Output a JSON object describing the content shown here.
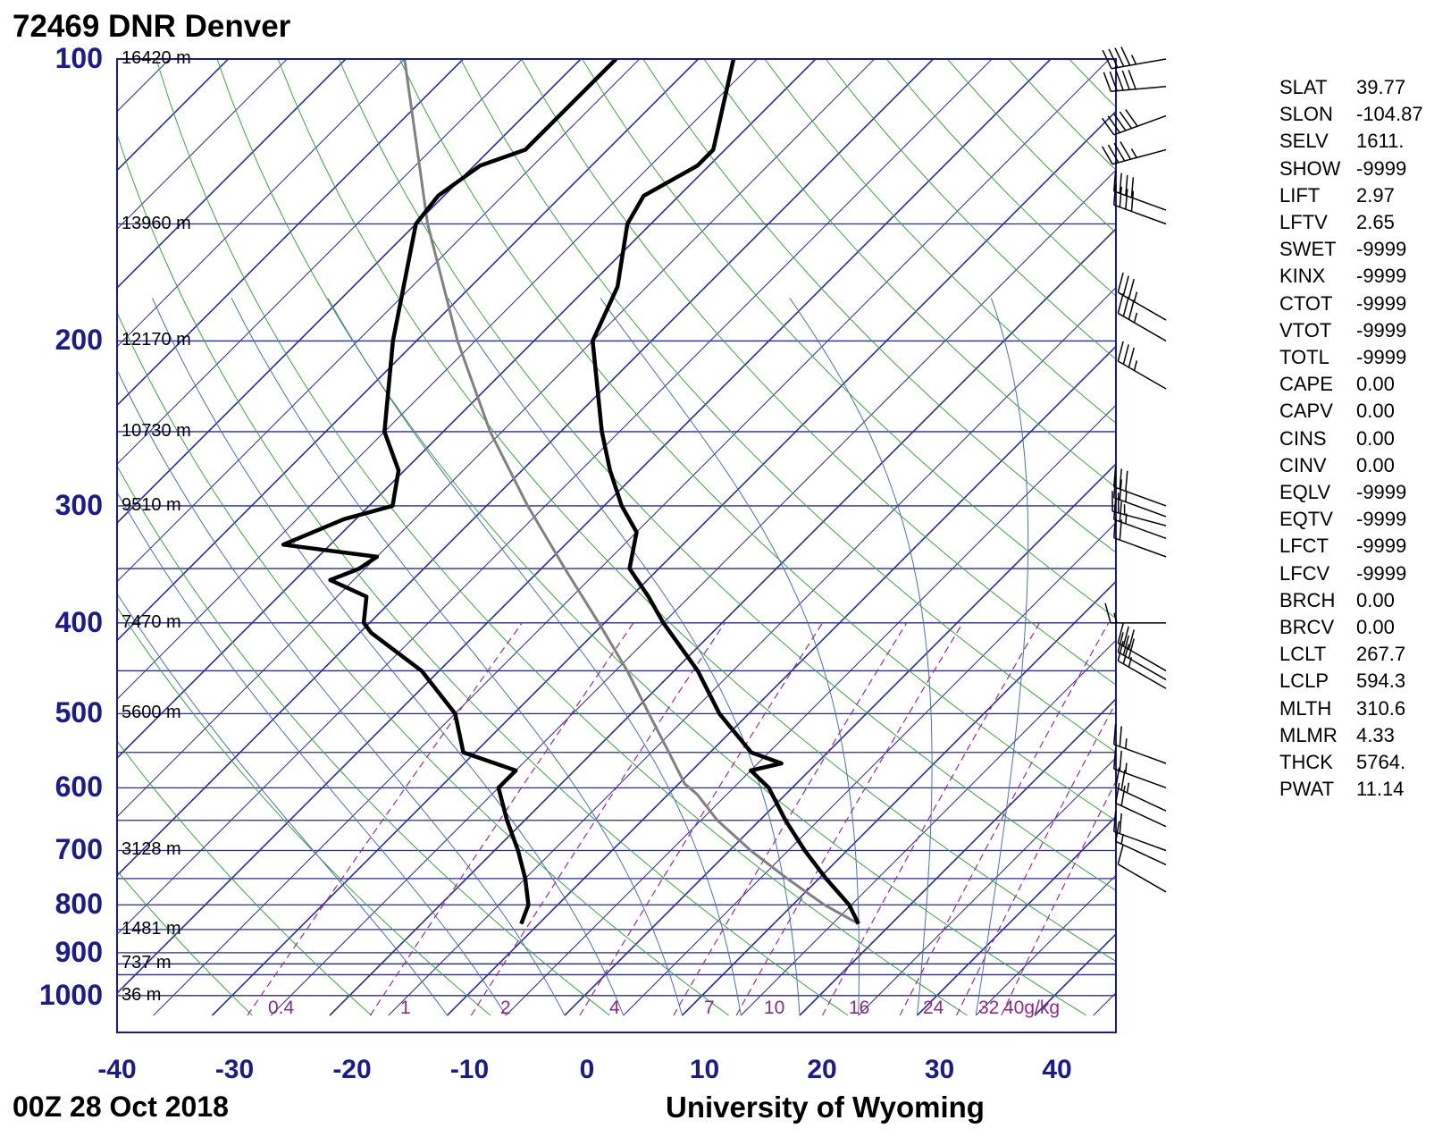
{
  "header": {
    "station": "72469 DNR Denver"
  },
  "footer": {
    "date": "00Z 28 Oct 2018",
    "source": "University of Wyoming"
  },
  "axes": {
    "pressure_labels": [
      "100",
      "200",
      "300",
      "400",
      "500",
      "600",
      "700",
      "800",
      "900",
      "1000"
    ],
    "temperature_labels": [
      "-40",
      "-30",
      "-20",
      "-10",
      "0",
      "10",
      "20",
      "30",
      "40"
    ]
  },
  "heights": [
    {
      "p": 100,
      "label": "16420 m"
    },
    {
      "p": 150,
      "label": "13960 m"
    },
    {
      "p": 200,
      "label": "12170 m"
    },
    {
      "p": 250,
      "label": "10730 m"
    },
    {
      "p": 300,
      "label": "9510 m"
    },
    {
      "p": 400,
      "label": "7470 m"
    },
    {
      "p": 500,
      "label": "5600 m"
    },
    {
      "p": 700,
      "label": "3128 m"
    },
    {
      "p": 850,
      "label": "1481 m"
    },
    {
      "p": 925,
      "label": "737 m"
    },
    {
      "p": 1000,
      "label": "36 m"
    }
  ],
  "mixing_ratio_labels": [
    "0.4",
    "1",
    "2",
    "4",
    "7",
    "10",
    "16",
    "24",
    "32",
    "40g/kg"
  ],
  "stats": [
    {
      "key": "SLAT",
      "value": "39.77"
    },
    {
      "key": "SLON",
      "value": "-104.87"
    },
    {
      "key": "SELV",
      "value": "1611."
    },
    {
      "key": "SHOW",
      "value": "-9999"
    },
    {
      "key": "LIFT",
      "value": "2.97"
    },
    {
      "key": "LFTV",
      "value": "2.65"
    },
    {
      "key": "SWET",
      "value": "-9999"
    },
    {
      "key": "KINX",
      "value": "-9999"
    },
    {
      "key": "CTOT",
      "value": "-9999"
    },
    {
      "key": "VTOT",
      "value": "-9999"
    },
    {
      "key": "TOTL",
      "value": "-9999"
    },
    {
      "key": "CAPE",
      "value": "0.00"
    },
    {
      "key": "CAPV",
      "value": "0.00"
    },
    {
      "key": "CINS",
      "value": "0.00"
    },
    {
      "key": "CINV",
      "value": "0.00"
    },
    {
      "key": "EQLV",
      "value": "-9999"
    },
    {
      "key": "EQTV",
      "value": "-9999"
    },
    {
      "key": "LFCT",
      "value": "-9999"
    },
    {
      "key": "LFCV",
      "value": "-9999"
    },
    {
      "key": "BRCH",
      "value": "0.00"
    },
    {
      "key": "BRCV",
      "value": "0.00"
    },
    {
      "key": "LCLT",
      "value": "267.7"
    },
    {
      "key": "LCLP",
      "value": "594.3"
    },
    {
      "key": "MLTH",
      "value": "310.6"
    },
    {
      "key": "MLMR",
      "value": "4.33"
    },
    {
      "key": "THCK",
      "value": "5764."
    },
    {
      "key": "PWAT",
      "value": "11.14"
    }
  ],
  "colors": {
    "frame": "#1b1b8f",
    "isobar": "#2a2aa0",
    "isotherm": "#2a2aa0",
    "dry_adiabat": "#3aa63a",
    "moist_adiabat": "#4a6fb5",
    "mixing_ratio": "#9a2a9a",
    "temperature": "#000000",
    "dewpoint": "#000000",
    "parcel": "#808080"
  },
  "chart_data": {
    "type": "skew-t",
    "pressure_range_hPa": [
      1050,
      100
    ],
    "temperature_range_C": [
      -40,
      45
    ],
    "isobars_hPa": [
      100,
      150,
      200,
      250,
      300,
      350,
      400,
      450,
      500,
      550,
      600,
      650,
      700,
      750,
      800,
      850,
      900,
      925,
      950,
      1000
    ],
    "temperature": [
      {
        "p": 838,
        "t": 17.2
      },
      {
        "p": 800,
        "t": 14.8
      },
      {
        "p": 750,
        "t": 10.6
      },
      {
        "p": 700,
        "t": 6.4
      },
      {
        "p": 650,
        "t": 2.2
      },
      {
        "p": 600,
        "t": -2.0
      },
      {
        "p": 575,
        "t": -5.0
      },
      {
        "p": 565,
        "t": -3.0
      },
      {
        "p": 550,
        "t": -6.5
      },
      {
        "p": 500,
        "t": -12.5
      },
      {
        "p": 450,
        "t": -18.0
      },
      {
        "p": 400,
        "t": -25.0
      },
      {
        "p": 375,
        "t": -28.5
      },
      {
        "p": 350,
        "t": -32.5
      },
      {
        "p": 320,
        "t": -35.0
      },
      {
        "p": 300,
        "t": -38.5
      },
      {
        "p": 275,
        "t": -42.5
      },
      {
        "p": 250,
        "t": -46.5
      },
      {
        "p": 200,
        "t": -55.0
      },
      {
        "p": 175,
        "t": -57.5
      },
      {
        "p": 150,
        "t": -62.0
      },
      {
        "p": 140,
        "t": -63.0
      },
      {
        "p": 130,
        "t": -61.0
      },
      {
        "p": 125,
        "t": -61.0
      },
      {
        "p": 100,
        "t": -67.0
      }
    ],
    "dewpoint": [
      {
        "p": 838,
        "t": -11.5
      },
      {
        "p": 800,
        "t": -12.5
      },
      {
        "p": 750,
        "t": -15.0
      },
      {
        "p": 700,
        "t": -18.0
      },
      {
        "p": 650,
        "t": -21.5
      },
      {
        "p": 600,
        "t": -25.0
      },
      {
        "p": 575,
        "t": -25.0
      },
      {
        "p": 550,
        "t": -31.0
      },
      {
        "p": 500,
        "t": -35.0
      },
      {
        "p": 450,
        "t": -41.5
      },
      {
        "p": 410,
        "t": -49.0
      },
      {
        "p": 400,
        "t": -50.5
      },
      {
        "p": 375,
        "t": -52.5
      },
      {
        "p": 360,
        "t": -57.0
      },
      {
        "p": 350,
        "t": -55.5
      },
      {
        "p": 340,
        "t": -55.0
      },
      {
        "p": 330,
        "t": -64.0
      },
      {
        "p": 310,
        "t": -61.0
      },
      {
        "p": 300,
        "t": -58.0
      },
      {
        "p": 275,
        "t": -60.5
      },
      {
        "p": 250,
        "t": -65.0
      },
      {
        "p": 200,
        "t": -72.0
      },
      {
        "p": 150,
        "t": -80.0
      },
      {
        "p": 140,
        "t": -80.5
      },
      {
        "p": 130,
        "t": -79.5
      },
      {
        "p": 125,
        "t": -77.0
      },
      {
        "p": 100,
        "t": -77.0
      }
    ],
    "parcel": [
      {
        "p": 838,
        "t": 17.2
      },
      {
        "p": 800,
        "t": 12.7
      },
      {
        "p": 750,
        "t": 7.3
      },
      {
        "p": 700,
        "t": 1.8
      },
      {
        "p": 650,
        "t": -3.6
      },
      {
        "p": 610,
        "t": -7.5
      },
      {
        "p": 594,
        "t": -9.5
      },
      {
        "p": 550,
        "t": -13.5
      },
      {
        "p": 500,
        "t": -18.5
      },
      {
        "p": 450,
        "t": -24.0
      },
      {
        "p": 400,
        "t": -30.5
      },
      {
        "p": 350,
        "t": -38.0
      },
      {
        "p": 300,
        "t": -46.5
      },
      {
        "p": 250,
        "t": -56.0
      },
      {
        "p": 200,
        "t": -66.5
      },
      {
        "p": 150,
        "t": -79.0
      },
      {
        "p": 100,
        "t": -95.0
      }
    ],
    "wind_barbs": [
      {
        "p": 100,
        "dir": 260,
        "kt": 45
      },
      {
        "p": 107,
        "dir": 265,
        "kt": 50
      },
      {
        "p": 115,
        "dir": 250,
        "kt": 50
      },
      {
        "p": 125,
        "dir": 255,
        "kt": 45
      },
      {
        "p": 145,
        "dir": 290,
        "kt": 40
      },
      {
        "p": 150,
        "dir": 290,
        "kt": 40
      },
      {
        "p": 190,
        "dir": 300,
        "kt": 35
      },
      {
        "p": 200,
        "dir": 300,
        "kt": 35
      },
      {
        "p": 225,
        "dir": 300,
        "kt": 35
      },
      {
        "p": 300,
        "dir": 290,
        "kt": 30
      },
      {
        "p": 308,
        "dir": 290,
        "kt": 25
      },
      {
        "p": 315,
        "dir": 285,
        "kt": 25
      },
      {
        "p": 325,
        "dir": 290,
        "kt": 25
      },
      {
        "p": 340,
        "dir": 290,
        "kt": 20
      },
      {
        "p": 400,
        "dir": 270,
        "kt": 15
      },
      {
        "p": 450,
        "dir": 300,
        "kt": 30
      },
      {
        "p": 460,
        "dir": 300,
        "kt": 30
      },
      {
        "p": 470,
        "dir": 300,
        "kt": 25
      },
      {
        "p": 565,
        "dir": 290,
        "kt": 25
      },
      {
        "p": 600,
        "dir": 290,
        "kt": 25
      },
      {
        "p": 635,
        "dir": 295,
        "kt": 25
      },
      {
        "p": 660,
        "dir": 295,
        "kt": 20
      },
      {
        "p": 700,
        "dir": 290,
        "kt": 20
      },
      {
        "p": 725,
        "dir": 295,
        "kt": 15
      },
      {
        "p": 775,
        "dir": 300,
        "kt": 10
      }
    ]
  }
}
